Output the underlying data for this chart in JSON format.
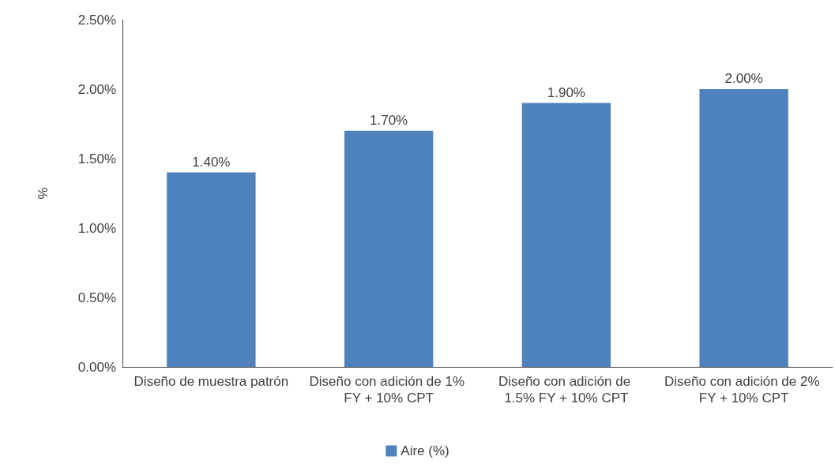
{
  "chart_data": {
    "type": "bar",
    "ylabel": "%",
    "categories": [
      "Diseño de muestra patrón",
      "Diseño con adición de 1% FY + 10% CPT",
      "Diseño con adición de 1.5% FY + 10% CPT",
      "Diseño con adición de 2% FY + 10% CPT"
    ],
    "series": [
      {
        "name": "Aire (%)",
        "color": "#4f81bd",
        "values": [
          1.4,
          1.7,
          1.9,
          2.0
        ],
        "value_labels": [
          "1.40%",
          "1.70%",
          "1.90%",
          "2.00%"
        ]
      }
    ],
    "ylim": [
      0,
      2.5
    ],
    "yticks": [
      {
        "value": 0,
        "label": "0.00%"
      },
      {
        "value": 0.5,
        "label": "0.50%"
      },
      {
        "value": 1,
        "label": "1.00%"
      },
      {
        "value": 1.5,
        "label": "1.50%"
      },
      {
        "value": 2,
        "label": "2.00%"
      },
      {
        "value": 2.5,
        "label": "2.50%"
      }
    ],
    "grid": false,
    "legend": "bottom"
  }
}
